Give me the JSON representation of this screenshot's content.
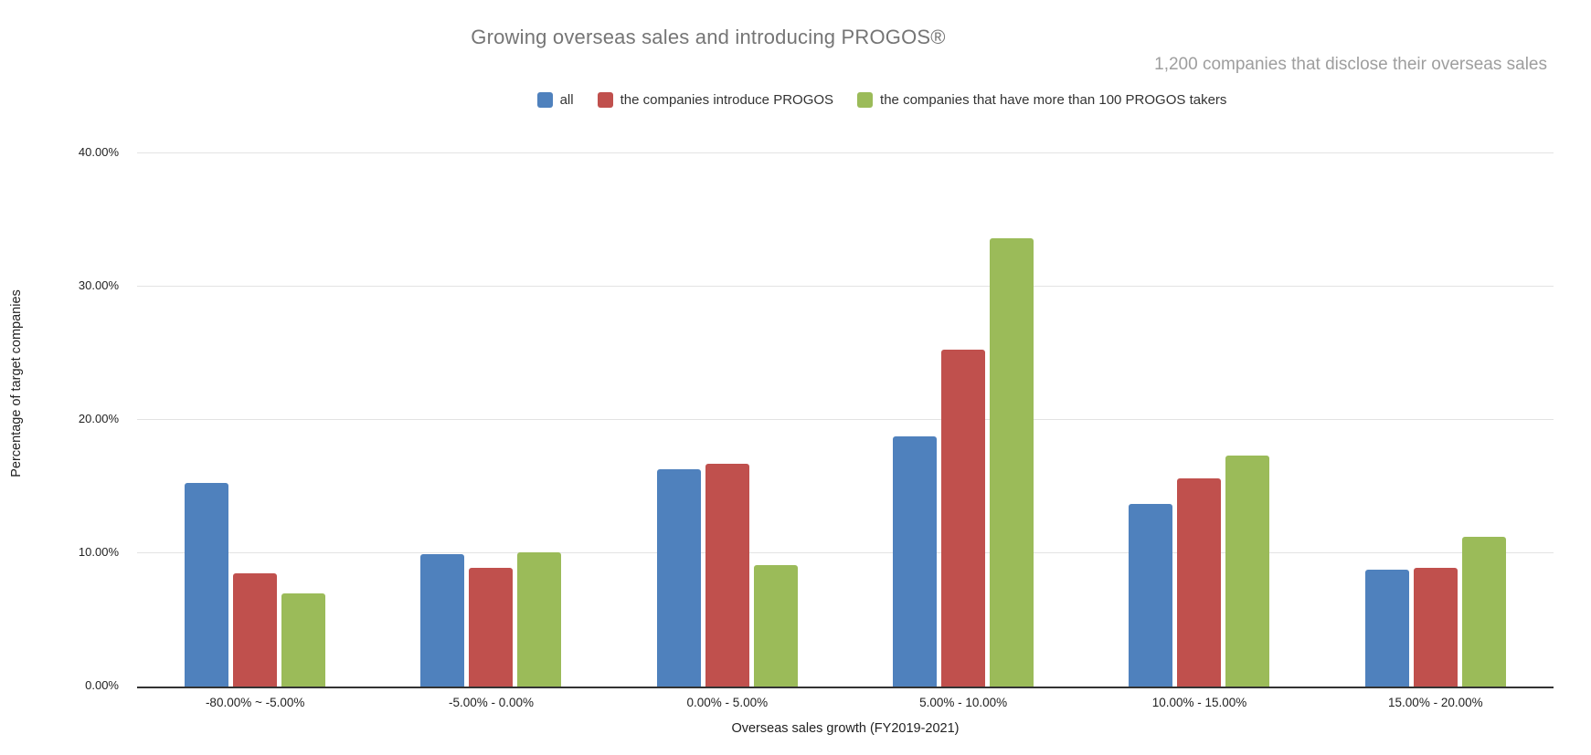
{
  "chart_data": {
    "type": "bar",
    "title": "Growing overseas sales and introducing PROGOS®",
    "subtitle": "1,200 companies that disclose their overseas sales",
    "xlabel": "Overseas sales growth (FY2019-2021)",
    "ylabel": "Percentage of target companies",
    "categories": [
      "-80.00% ~ -5.00%",
      "-5.00% - 0.00%",
      "0.00% - 5.00%",
      "5.00% - 10.00%",
      "10.00% - 15.00%",
      "15.00% - 20.00%"
    ],
    "series": [
      {
        "name": "all",
        "color": "#4F81BD",
        "values": [
          15.3,
          9.9,
          16.3,
          18.8,
          13.7,
          8.8
        ]
      },
      {
        "name": "the companies introduce PROGOS",
        "color": "#C0504D",
        "values": [
          8.5,
          8.9,
          16.7,
          25.3,
          15.6,
          8.9
        ]
      },
      {
        "name": "the companies that have more than 100 PROGOS takers",
        "color": "#9BBB59",
        "values": [
          7.0,
          10.1,
          9.1,
          33.6,
          17.3,
          11.2
        ]
      }
    ],
    "ylim": [
      0,
      40
    ],
    "yticks": [
      0,
      10,
      20,
      30,
      40
    ],
    "ytick_labels": [
      "0.00%",
      "10.00%",
      "20.00%",
      "30.00%",
      "40.00%"
    ],
    "grid": true,
    "legend_position": "top"
  },
  "style": {
    "axis_line_color": "#333333",
    "gridline_color": "#e3e3e3",
    "title_color": "#757575",
    "subtitle_color": "#9e9e9e"
  }
}
